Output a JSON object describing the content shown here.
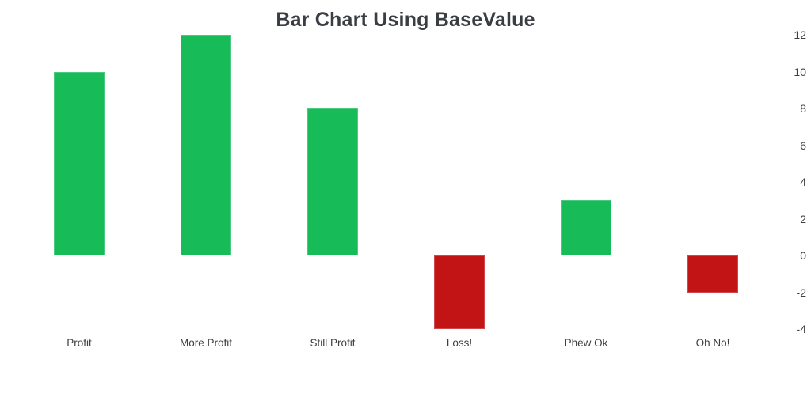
{
  "chart_data": {
    "type": "bar",
    "title": "Bar Chart Using BaseValue",
    "categories": [
      "Profit",
      "More Profit",
      "Still Profit",
      "Loss!",
      "Phew Ok",
      "Oh No!"
    ],
    "values": [
      10,
      12,
      8,
      -4,
      3,
      -2
    ],
    "base_value": 0,
    "y_ticks": [
      12,
      10,
      8,
      6,
      4,
      2,
      0,
      -2,
      -4
    ],
    "ylim": [
      -4,
      12
    ],
    "xlabel": "",
    "ylabel": "",
    "y_axis_position": "right",
    "grid": false,
    "legend_position": "none",
    "colors": {
      "positive_bar": "#17bc58",
      "negative_bar": "#c21414",
      "title_text": "#3a3e42",
      "axis_text": "#3c4043",
      "background": "#ffffff"
    }
  }
}
